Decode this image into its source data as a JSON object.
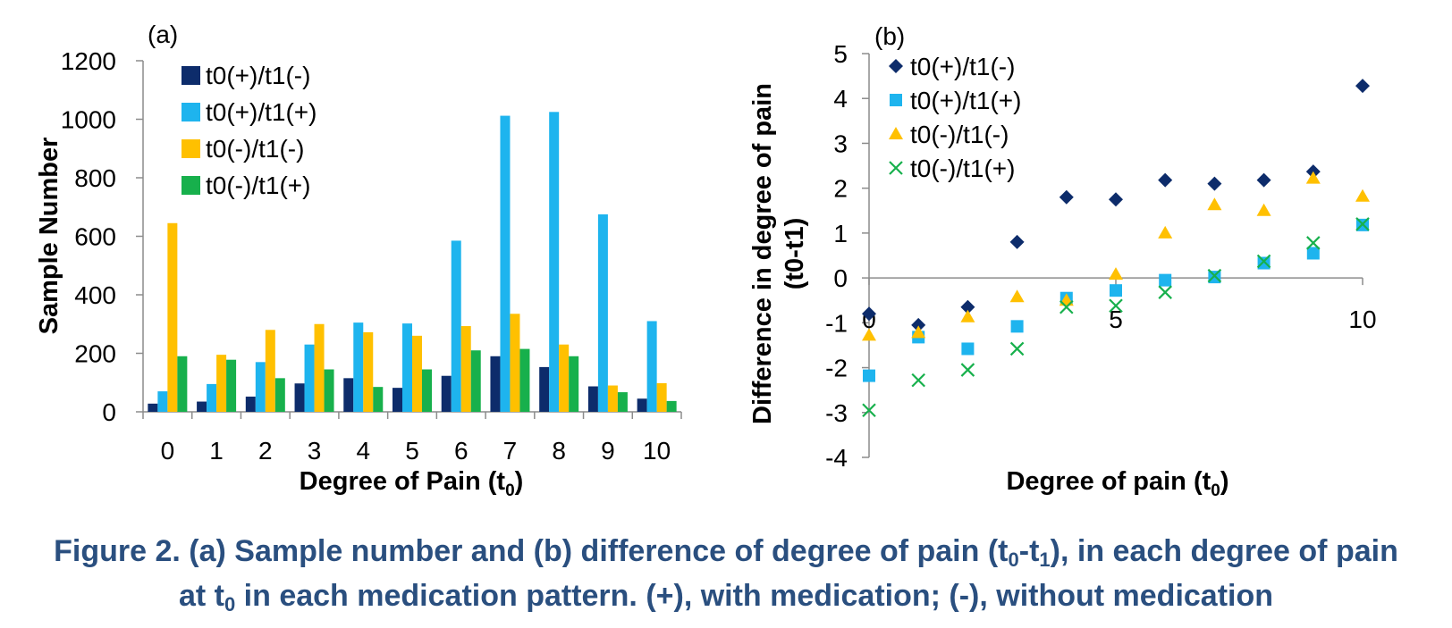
{
  "chart_data": [
    {
      "type": "bar",
      "panel_label": "(a)",
      "ylabel": "Sample Number",
      "xlabel": {
        "main": "Degree of Pain (t",
        "sub": "0",
        "end": ")"
      },
      "ylim": [
        0,
        1200
      ],
      "yticks": [
        0,
        200,
        400,
        600,
        800,
        1000,
        1200
      ],
      "grid": false,
      "legend_position": "top-left",
      "categories": [
        "0",
        "1",
        "2",
        "3",
        "4",
        "5",
        "6",
        "7",
        "8",
        "9",
        "10"
      ],
      "series": [
        {
          "name": "t0(+)/t1(-)",
          "color": "#0d2c6b",
          "values": [
            28,
            35,
            52,
            97,
            115,
            82,
            123,
            190,
            153,
            87,
            45
          ]
        },
        {
          "name": "t0(+)/t1(+)",
          "color": "#1eb4ee",
          "values": [
            70,
            95,
            170,
            230,
            305,
            302,
            585,
            1012,
            1025,
            675,
            310
          ]
        },
        {
          "name": "t0(-)/t1(-)",
          "color": "#ffc000",
          "values": [
            645,
            195,
            280,
            300,
            272,
            260,
            293,
            335,
            230,
            90,
            98
          ]
        },
        {
          "name": "t0(-)/t1(+)",
          "color": "#17b04c",
          "values": [
            190,
            178,
            115,
            145,
            85,
            145,
            210,
            215,
            190,
            67,
            37
          ]
        }
      ]
    },
    {
      "type": "scatter",
      "panel_label": "(b)",
      "ylabel": [
        "Difference in degree of pain",
        "(t0-t1)"
      ],
      "xlabel": {
        "main": "Degree of pain (t",
        "sub": "0",
        "end": ")"
      },
      "xlim": [
        0,
        10
      ],
      "ylim": [
        -4,
        5
      ],
      "xticks": [
        0,
        5,
        10
      ],
      "yticks": [
        -4,
        -3,
        -2,
        -1,
        0,
        1,
        2,
        3,
        4,
        5
      ],
      "grid": false,
      "legend_position": "top-left",
      "x": [
        0,
        1,
        2,
        3,
        4,
        5,
        6,
        7,
        8,
        9,
        10
      ],
      "series": [
        {
          "name": "t0(+)/t1(-)",
          "color": "#0d2c6b",
          "marker": "diamond",
          "values": [
            -0.8,
            -1.05,
            -0.65,
            0.8,
            1.8,
            1.75,
            2.18,
            2.1,
            2.18,
            2.37,
            4.28
          ]
        },
        {
          "name": "t0(+)/t1(+)",
          "color": "#1eb4ee",
          "marker": "square",
          "values": [
            -2.18,
            -1.32,
            -1.58,
            -1.08,
            -0.45,
            -0.28,
            -0.05,
            0.02,
            0.33,
            0.55,
            1.18
          ]
        },
        {
          "name": "t0(-)/t1(-)",
          "color": "#ffc000",
          "marker": "triangle",
          "values": [
            -1.28,
            -1.22,
            -0.87,
            -0.42,
            -0.5,
            0.08,
            1.0,
            1.63,
            1.5,
            2.22,
            1.82
          ]
        },
        {
          "name": "t0(-)/t1(+)",
          "color": "#17b04c",
          "marker": "x",
          "values": [
            -2.95,
            -2.28,
            -2.05,
            -1.58,
            -0.65,
            -0.62,
            -0.32,
            0.05,
            0.37,
            0.78,
            1.2
          ]
        }
      ]
    }
  ],
  "caption": {
    "line1_a": "Figure 2. (a) Sample number and (b) difference of degree of pain (t",
    "line1_sub1": "0",
    "line1_b": "-t",
    "line1_sub2": "1",
    "line1_c": "), in each degree of pain",
    "line2_a": "at t",
    "line2_sub": "0",
    "line2_b": " in each medication pattern. (+), with medication; (-), without medication"
  },
  "colors": {
    "caption": "#2a4f7f",
    "axis": "#8c8c8c",
    "text": "#000000"
  }
}
